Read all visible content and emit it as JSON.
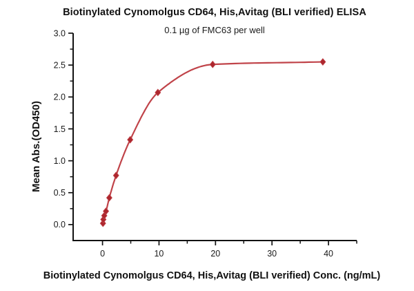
{
  "chart_data": {
    "type": "scatter",
    "title": "Biotinylated Cynomolgus CD64, His,Avitag (BLI verified) ELISA",
    "subtitle": "0.1 µg of FMC63 per well",
    "xlabel": "Biotinylated Cynomolgus CD64, His,Avitag (BLI verified) Conc. (ng/mL)",
    "ylabel": "Mean Abs.(OD450)",
    "x": [
      0.08,
      0.15,
      0.31,
      0.61,
      1.2,
      2.4,
      4.9,
      9.8,
      19.5,
      39
    ],
    "y": [
      0.02,
      0.08,
      0.14,
      0.21,
      0.42,
      0.77,
      1.33,
      2.07,
      2.51,
      2.55
    ],
    "xlim": [
      -5.2,
      45
    ],
    "ylim": [
      -0.25,
      3.0
    ],
    "x_major_ticks": [
      0,
      10,
      20,
      30,
      40
    ],
    "x_tick_labels": [
      "0",
      "10",
      "20",
      "30",
      "40"
    ],
    "x_minor_ticks": [
      5,
      15,
      25,
      35,
      45
    ],
    "y_major_ticks": [
      0.0,
      0.5,
      1.0,
      1.5,
      2.0,
      2.5,
      3.0
    ],
    "y_tick_labels": [
      "0.0",
      "0.5",
      "1.0",
      "1.5",
      "2.0",
      "2.5",
      "3.0"
    ],
    "y_minor_ticks": [
      0.25,
      0.75,
      1.25,
      1.75,
      2.25,
      2.75
    ],
    "grid": false,
    "legend": "none",
    "marker": "diamond",
    "curve": "smooth fitted binding curve through data points",
    "colors": {
      "curve": "#C04349",
      "marker": "#AD272E",
      "axis": "#111111",
      "text": "#111111",
      "background": "#FFFFFF"
    }
  }
}
